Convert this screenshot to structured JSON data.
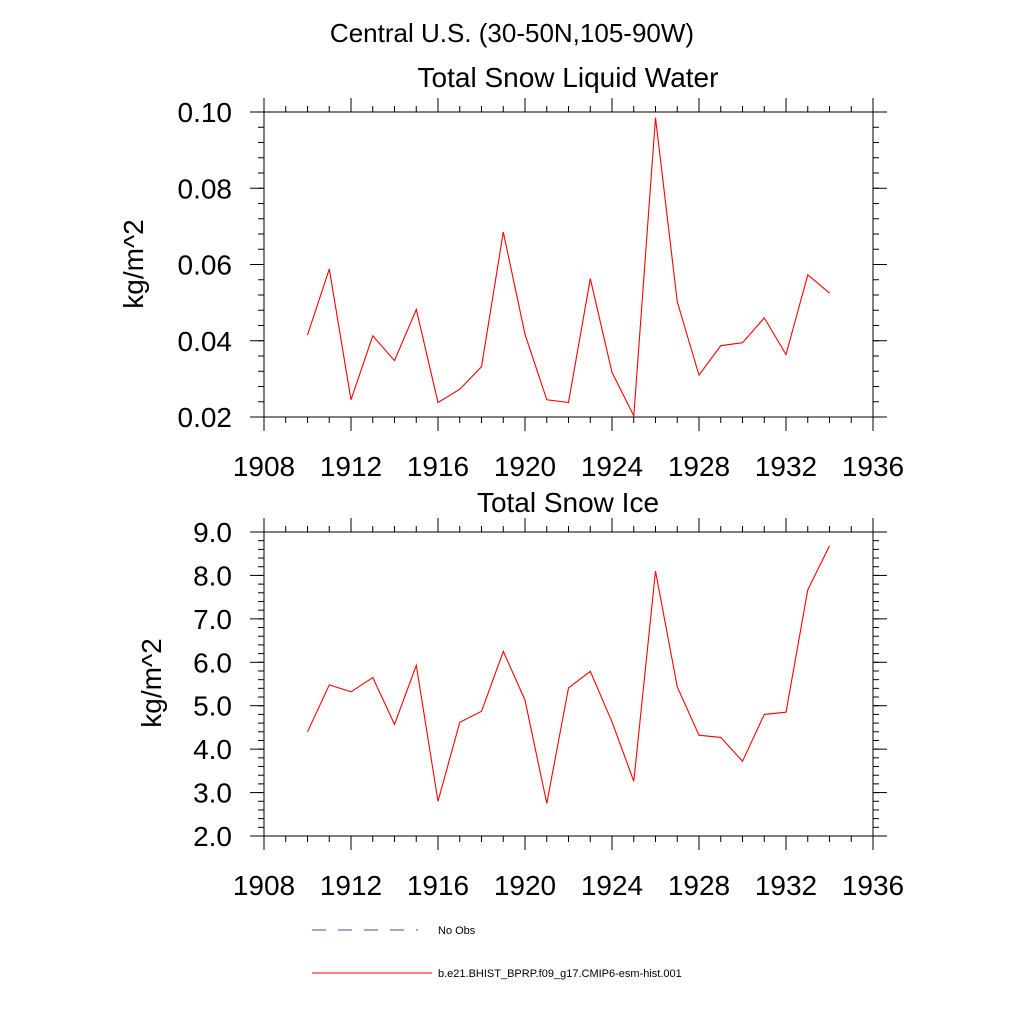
{
  "page_title": "Central U.S. (30-50N,105-90W)",
  "colors": {
    "series": "#ff0000",
    "no_obs": "#4a4a9a",
    "axis": "#000000"
  },
  "legend": {
    "entries": [
      {
        "label": "No Obs",
        "style": "dashed",
        "color": "#4a4a9a"
      },
      {
        "label": "b.e21.BHIST_BPRP.f09_g17.CMIP6-esm-hist.001",
        "style": "solid",
        "color": "#ff0000"
      }
    ]
  },
  "chart_data": [
    {
      "type": "line",
      "title": "Total Snow Liquid Water",
      "xlabel": "",
      "ylabel": "kg/m^2",
      "xlim": [
        1908,
        1936
      ],
      "ylim": [
        0.02,
        0.1
      ],
      "x_ticks": [
        1908,
        1912,
        1916,
        1920,
        1924,
        1928,
        1932,
        1936
      ],
      "x_minor_step": 1,
      "y_ticks": [
        "0.02",
        "0.04",
        "0.06",
        "0.08",
        "0.10"
      ],
      "y_minor_step": 0.004,
      "grid": false,
      "x": [
        1910,
        1911,
        1912,
        1913,
        1914,
        1915,
        1916,
        1917,
        1918,
        1919,
        1920,
        1921,
        1922,
        1923,
        1924,
        1925,
        1926,
        1927,
        1928,
        1929,
        1930,
        1931,
        1932,
        1933,
        1934
      ],
      "series": [
        {
          "values": [
            0.0415,
            0.0588,
            0.0245,
            0.0413,
            0.0348,
            0.0482,
            0.0238,
            0.0273,
            0.0332,
            0.0685,
            0.0417,
            0.0245,
            0.0238,
            0.0563,
            0.0317,
            0.0203,
            0.0985,
            0.0502,
            0.031,
            0.0387,
            0.0395,
            0.046,
            0.0364,
            0.0573,
            0.0525
          ]
        }
      ]
    },
    {
      "type": "line",
      "title": "Total Snow Ice",
      "xlabel": "",
      "ylabel": "kg/m^2",
      "xlim": [
        1908,
        1936
      ],
      "ylim": [
        2.0,
        9.0
      ],
      "x_ticks": [
        1908,
        1912,
        1916,
        1920,
        1924,
        1928,
        1932,
        1936
      ],
      "x_minor_step": 1,
      "y_ticks": [
        "2.0",
        "3.0",
        "4.0",
        "5.0",
        "6.0",
        "7.0",
        "8.0",
        "9.0"
      ],
      "y_minor_step": 0.2,
      "grid": false,
      "x": [
        1910,
        1911,
        1912,
        1913,
        1914,
        1915,
        1916,
        1917,
        1918,
        1919,
        1920,
        1921,
        1922,
        1923,
        1924,
        1925,
        1926,
        1927,
        1928,
        1929,
        1930,
        1931,
        1932,
        1933,
        1934
      ],
      "series": [
        {
          "values": [
            4.4,
            5.48,
            5.32,
            5.65,
            4.57,
            5.93,
            2.8,
            4.62,
            4.87,
            6.25,
            5.13,
            2.75,
            5.41,
            5.79,
            4.63,
            3.26,
            8.1,
            5.43,
            4.32,
            4.27,
            3.72,
            4.8,
            4.85,
            7.67,
            8.68
          ]
        }
      ]
    }
  ]
}
